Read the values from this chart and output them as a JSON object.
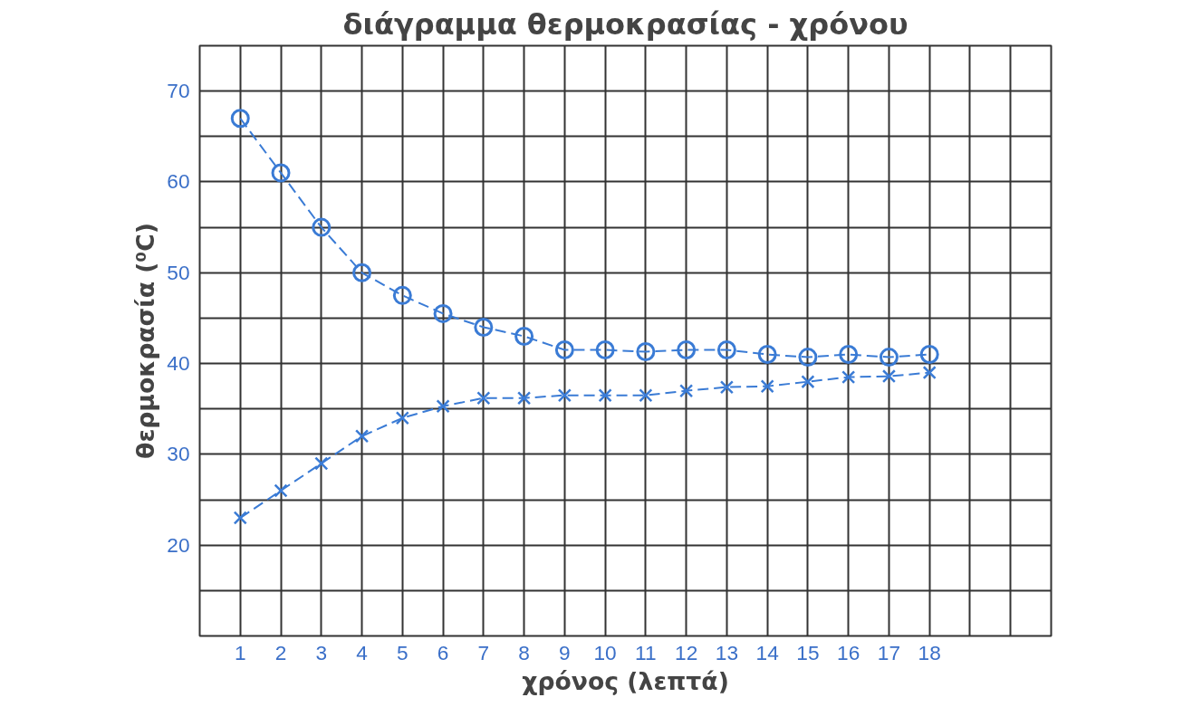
{
  "chart_data": {
    "type": "line",
    "title": "διάγραμμα θερμοκρασίας - χρόνου",
    "xlabel": "χρόνος (λεπτά)",
    "ylabel": "θερμοκρασία (⁰C)",
    "x": [
      1,
      2,
      3,
      4,
      5,
      6,
      7,
      8,
      9,
      10,
      11,
      12,
      13,
      14,
      15,
      16,
      17,
      18
    ],
    "series": [
      {
        "color": "#3a7bd5",
        "marker": "circle",
        "values": [
          67,
          61,
          55,
          50,
          47.5,
          45.5,
          44,
          43,
          41.5,
          41.5,
          41.3,
          41.5,
          41.5,
          41,
          40.7,
          41,
          40.7,
          41
        ]
      },
      {
        "color": "#3a7bd5",
        "marker": "cross",
        "values": [
          23,
          26,
          29,
          32,
          34,
          35.3,
          36.2,
          36.2,
          36.5,
          36.5,
          36.5,
          37,
          37.4,
          37.5,
          38,
          38.5,
          38.6,
          39
        ]
      }
    ],
    "xlim": [
      0,
      21
    ],
    "ylim": [
      10,
      75
    ],
    "xticks": [
      1,
      2,
      3,
      4,
      5,
      6,
      7,
      8,
      9,
      10,
      11,
      12,
      13,
      14,
      15,
      16,
      17,
      18,
      {
        "value": 19,
        "label": null
      },
      {
        "value": 20,
        "label": null
      }
    ],
    "yticks": [
      {
        "value": 15,
        "label": null
      },
      20,
      {
        "value": 25,
        "label": null
      },
      30,
      {
        "value": 35,
        "label": null
      },
      40,
      {
        "value": 45,
        "label": null
      },
      50,
      {
        "value": 55,
        "label": null
      },
      60,
      {
        "value": 65,
        "label": null
      },
      70
    ],
    "grid": true,
    "line_style": "dashed"
  }
}
